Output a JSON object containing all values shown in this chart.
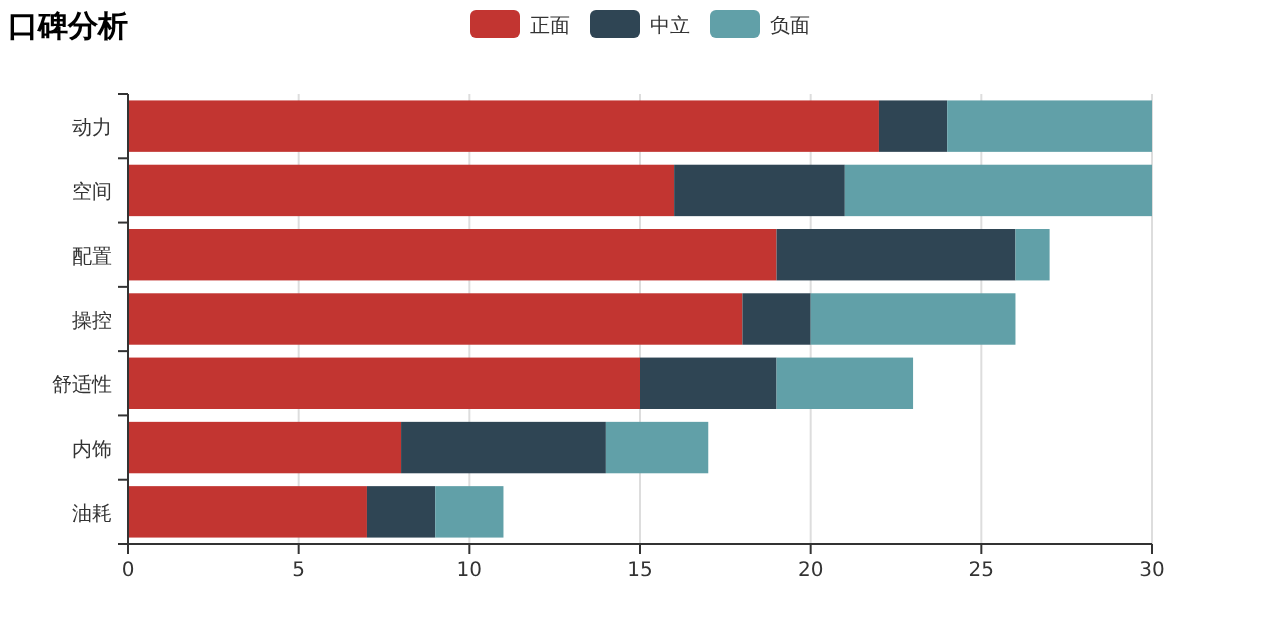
{
  "chart_data": {
    "type": "bar",
    "title": "口碑分析",
    "orientation": "horizontal",
    "stacked": true,
    "categories": [
      "动力",
      "空间",
      "配置",
      "操控",
      "舒适性",
      "内饰",
      "油耗"
    ],
    "series": [
      {
        "name": "正面",
        "color": "#c23531",
        "values": [
          22,
          16,
          19,
          18,
          15,
          8,
          7
        ]
      },
      {
        "name": "中立",
        "color": "#2f4554",
        "values": [
          2,
          5,
          7,
          2,
          4,
          6,
          2
        ]
      },
      {
        "name": "负面",
        "color": "#61a0a8",
        "values": [
          6,
          9,
          1,
          6,
          4,
          3,
          2
        ]
      }
    ],
    "xlim": [
      0,
      30
    ],
    "xticks": [
      0,
      5,
      10,
      15,
      20,
      25,
      30
    ],
    "grid": "x",
    "legend": "top"
  }
}
